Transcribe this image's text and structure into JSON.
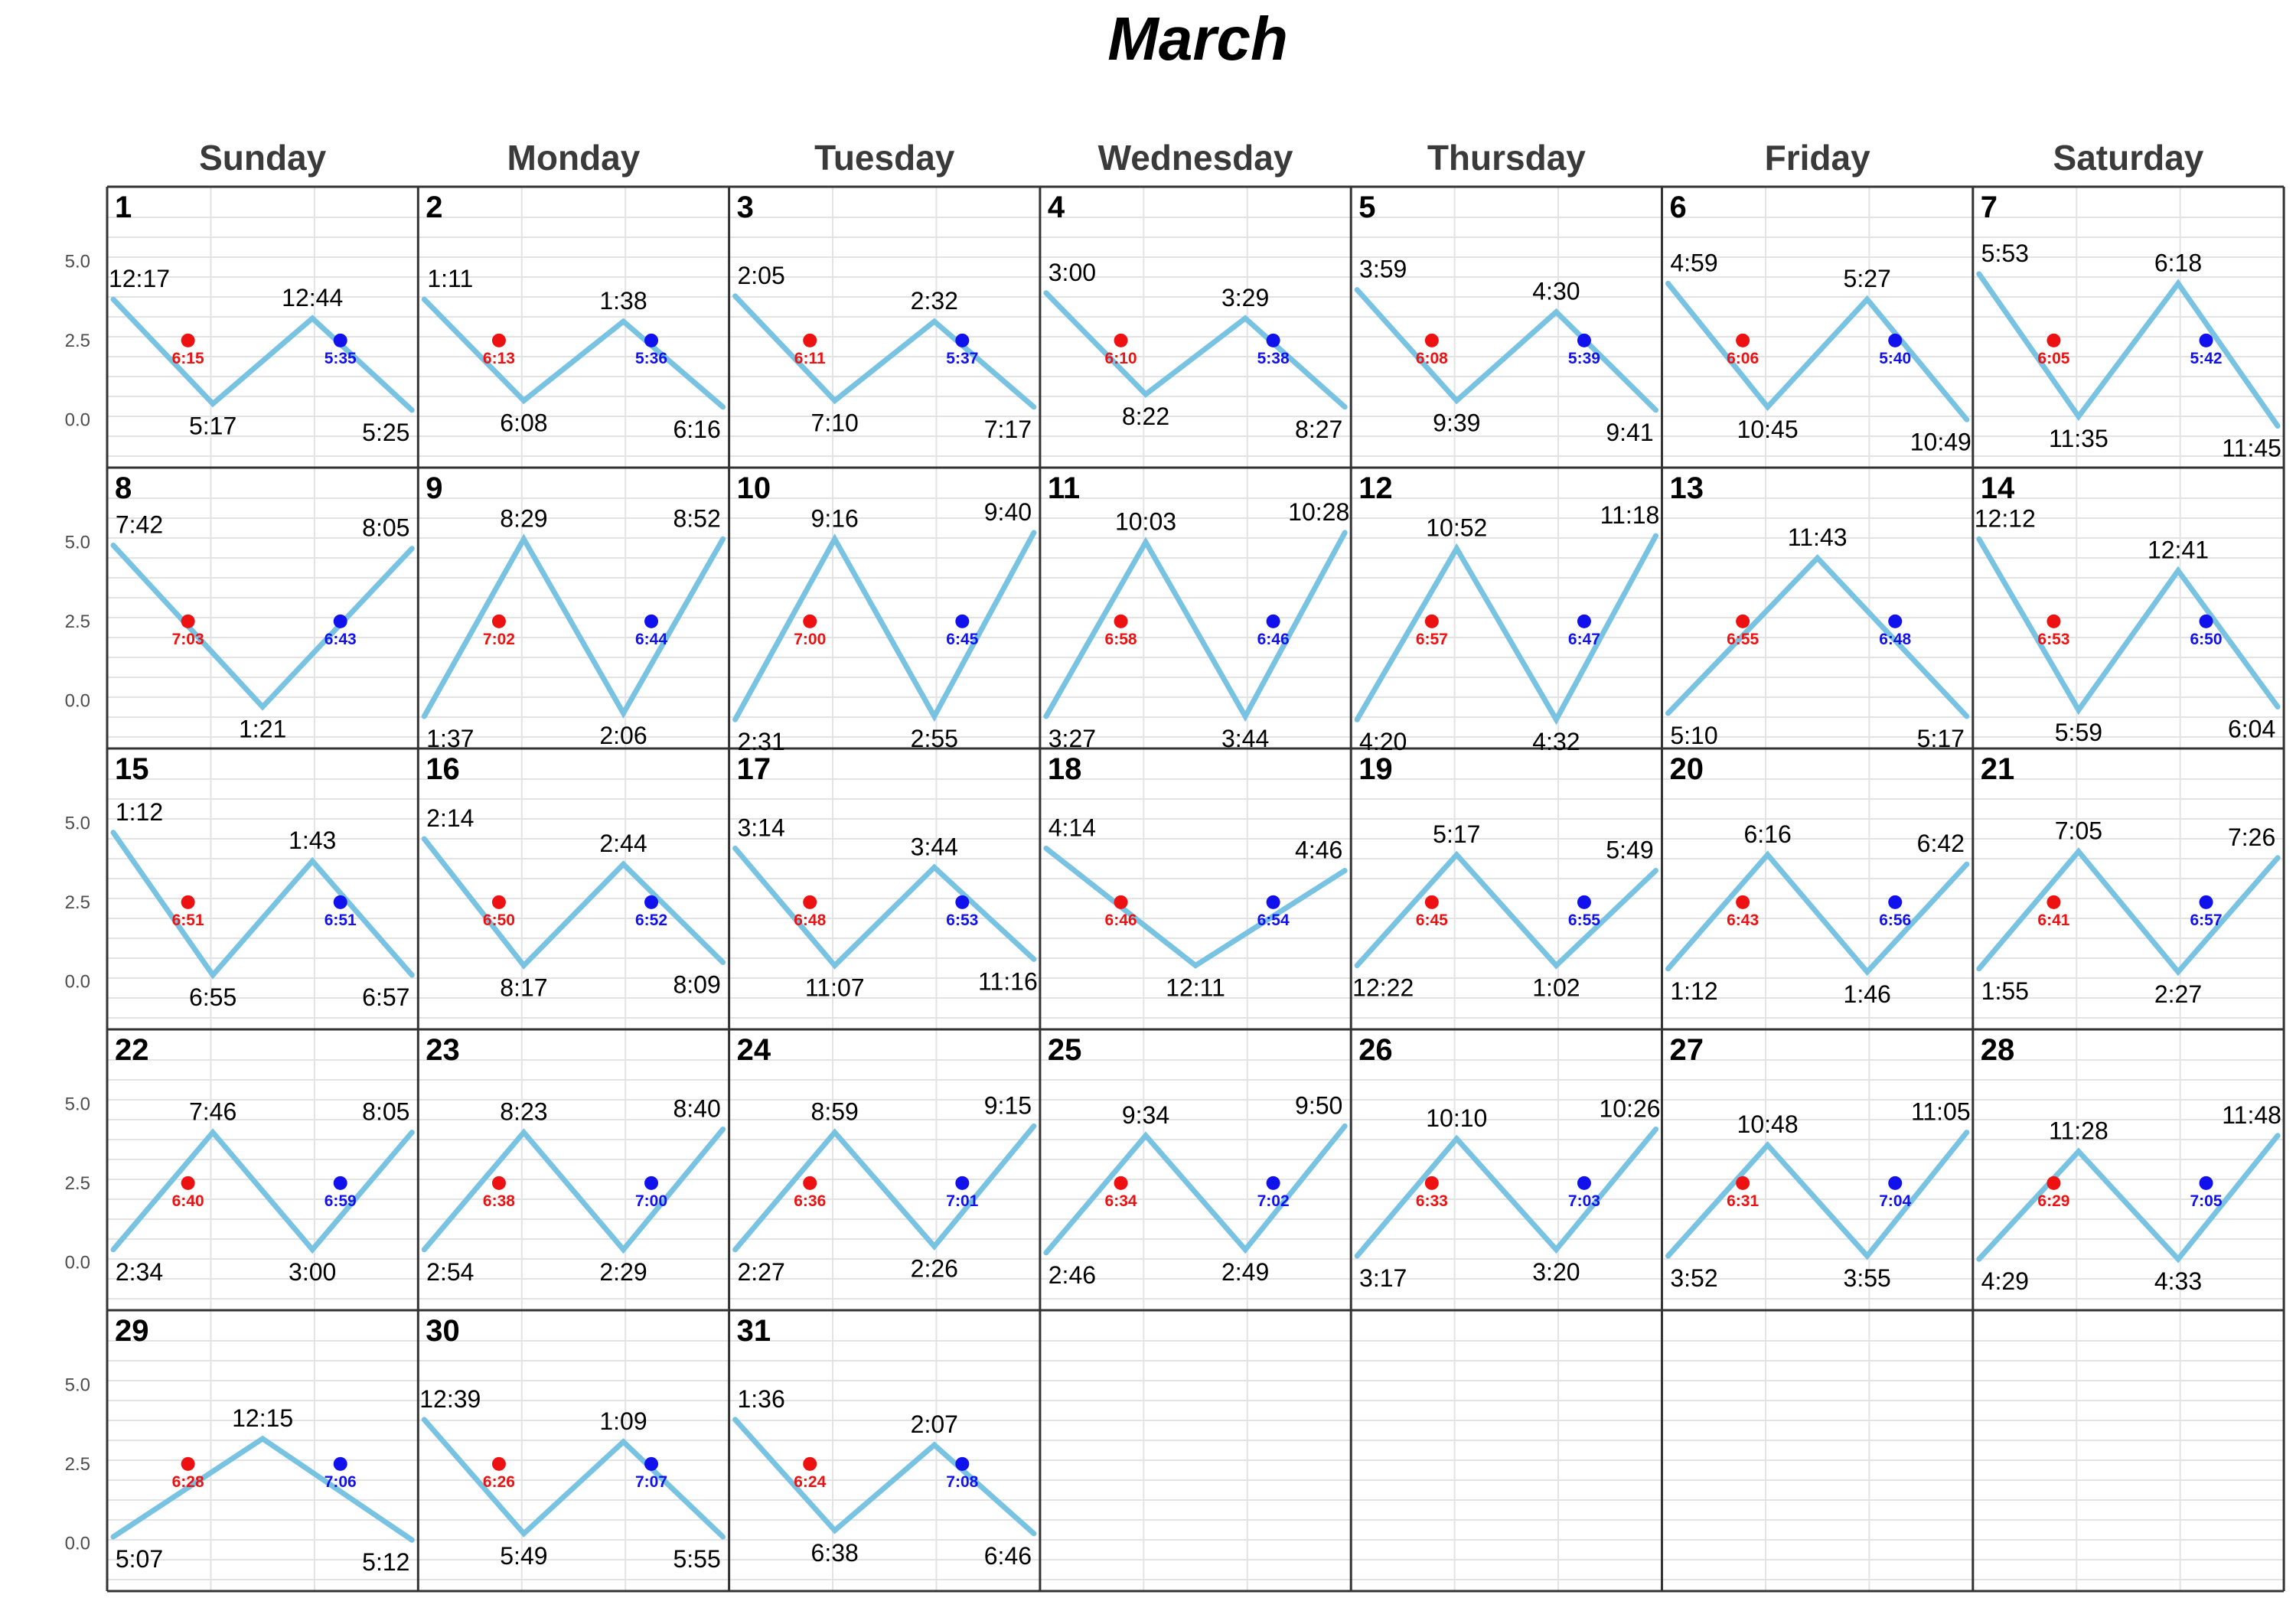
{
  "chart_data": {
    "type": "line",
    "title": "March",
    "weekdays": [
      "Sunday",
      "Monday",
      "Tuesday",
      "Wednesday",
      "Thursday",
      "Friday",
      "Saturday"
    ],
    "y_ticks": [
      "5.0",
      "2.5",
      "0.0"
    ],
    "ylim": [
      -1.2,
      6.0
    ],
    "first_weekday_index": 0,
    "grid": true,
    "colors": {
      "tide_line": "#78c2e2",
      "sunrise": "#ee1111",
      "sunset": "#1111ee",
      "cell_border": "#333333",
      "grid": "#e3e3e3"
    },
    "days": [
      {
        "day": "1",
        "sunrise": "6:15",
        "sunset": "5:35",
        "tides": [
          {
            "t": "12:17",
            "h": 3.8
          },
          {
            "t": "5:17",
            "h": 0.5
          },
          {
            "t": "12:44",
            "h": 3.2
          },
          {
            "t": "5:25",
            "h": 0.3
          }
        ]
      },
      {
        "day": "2",
        "sunrise": "6:13",
        "sunset": "5:36",
        "tides": [
          {
            "t": "1:11",
            "h": 3.8
          },
          {
            "t": "6:08",
            "h": 0.6
          },
          {
            "t": "1:38",
            "h": 3.1
          },
          {
            "t": "6:16",
            "h": 0.4
          }
        ]
      },
      {
        "day": "3",
        "sunrise": "6:11",
        "sunset": "5:37",
        "tides": [
          {
            "t": "2:05",
            "h": 3.9
          },
          {
            "t": "7:10",
            "h": 0.6
          },
          {
            "t": "2:32",
            "h": 3.1
          },
          {
            "t": "7:17",
            "h": 0.4
          }
        ]
      },
      {
        "day": "4",
        "sunrise": "6:10",
        "sunset": "5:38",
        "tides": [
          {
            "t": "3:00",
            "h": 4.0
          },
          {
            "t": "8:22",
            "h": 0.8
          },
          {
            "t": "3:29",
            "h": 3.2
          },
          {
            "t": "8:27",
            "h": 0.4
          }
        ]
      },
      {
        "day": "5",
        "sunrise": "6:08",
        "sunset": "5:39",
        "tides": [
          {
            "t": "3:59",
            "h": 4.1
          },
          {
            "t": "9:39",
            "h": 0.6
          },
          {
            "t": "4:30",
            "h": 3.4
          },
          {
            "t": "9:41",
            "h": 0.3
          }
        ]
      },
      {
        "day": "6",
        "sunrise": "6:06",
        "sunset": "5:40",
        "tides": [
          {
            "t": "4:59",
            "h": 4.3
          },
          {
            "t": "10:45",
            "h": 0.4
          },
          {
            "t": "5:27",
            "h": 3.8
          },
          {
            "t": "10:49",
            "h": 0.0
          }
        ]
      },
      {
        "day": "7",
        "sunrise": "6:05",
        "sunset": "5:42",
        "tides": [
          {
            "t": "5:53",
            "h": 4.6
          },
          {
            "t": "11:35",
            "h": 0.1
          },
          {
            "t": "6:18",
            "h": 4.3
          },
          {
            "t": "11:45",
            "h": -0.2
          }
        ]
      },
      {
        "day": "8",
        "sunrise": "7:03",
        "sunset": "6:43",
        "tides": [
          {
            "t": "7:42",
            "h": 4.9
          },
          {
            "t": "1:21",
            "h": -0.2
          },
          {
            "t": "8:05",
            "h": 4.8
          }
        ]
      },
      {
        "day": "9",
        "sunrise": "7:02",
        "sunset": "6:44",
        "tides": [
          {
            "t": "1:37",
            "h": -0.5
          },
          {
            "t": "8:29",
            "h": 5.1
          },
          {
            "t": "2:06",
            "h": -0.4
          },
          {
            "t": "8:52",
            "h": 5.1
          }
        ]
      },
      {
        "day": "10",
        "sunrise": "7:00",
        "sunset": "6:45",
        "tides": [
          {
            "t": "2:31",
            "h": -0.6
          },
          {
            "t": "9:16",
            "h": 5.1
          },
          {
            "t": "2:55",
            "h": -0.5
          },
          {
            "t": "9:40",
            "h": 5.3
          }
        ]
      },
      {
        "day": "11",
        "sunrise": "6:58",
        "sunset": "6:46",
        "tides": [
          {
            "t": "3:27",
            "h": -0.5
          },
          {
            "t": "10:03",
            "h": 5.0
          },
          {
            "t": "3:44",
            "h": -0.5
          },
          {
            "t": "10:28",
            "h": 5.3
          }
        ]
      },
      {
        "day": "12",
        "sunrise": "6:57",
        "sunset": "6:47",
        "tides": [
          {
            "t": "4:20",
            "h": -0.6
          },
          {
            "t": "10:52",
            "h": 4.8
          },
          {
            "t": "4:32",
            "h": -0.6
          },
          {
            "t": "11:18",
            "h": 5.2
          }
        ]
      },
      {
        "day": "13",
        "sunrise": "6:55",
        "sunset": "6:48",
        "tides": [
          {
            "t": "5:10",
            "h": -0.4
          },
          {
            "t": "11:43",
            "h": 4.5
          },
          {
            "t": "5:17",
            "h": -0.5
          }
        ]
      },
      {
        "day": "14",
        "sunrise": "6:53",
        "sunset": "6:50",
        "tides": [
          {
            "t": "12:12",
            "h": 5.1
          },
          {
            "t": "5:59",
            "h": -0.3
          },
          {
            "t": "12:41",
            "h": 4.1
          },
          {
            "t": "6:04",
            "h": -0.2
          }
        ]
      },
      {
        "day": "15",
        "sunrise": "6:51",
        "sunset": "6:51",
        "tides": [
          {
            "t": "1:12",
            "h": 4.7
          },
          {
            "t": "6:55",
            "h": 0.2
          },
          {
            "t": "1:43",
            "h": 3.8
          },
          {
            "t": "6:57",
            "h": 0.2
          }
        ]
      },
      {
        "day": "16",
        "sunrise": "6:50",
        "sunset": "6:52",
        "tides": [
          {
            "t": "2:14",
            "h": 4.5
          },
          {
            "t": "8:17",
            "h": 0.5
          },
          {
            "t": "2:44",
            "h": 3.7
          },
          {
            "t": "8:09",
            "h": 0.6
          }
        ]
      },
      {
        "day": "17",
        "sunrise": "6:48",
        "sunset": "6:53",
        "tides": [
          {
            "t": "3:14",
            "h": 4.2
          },
          {
            "t": "11:07",
            "h": 0.5
          },
          {
            "t": "3:44",
            "h": 3.6
          },
          {
            "t": "11:16",
            "h": 0.7
          }
        ]
      },
      {
        "day": "18",
        "sunrise": "6:46",
        "sunset": "6:54",
        "tides": [
          {
            "t": "4:14",
            "h": 4.2
          },
          {
            "t": "12:11",
            "h": 0.5
          },
          {
            "t": "4:46",
            "h": 3.5
          }
        ]
      },
      {
        "day": "19",
        "sunrise": "6:45",
        "sunset": "6:55",
        "tides": [
          {
            "t": "12:22",
            "h": 0.5
          },
          {
            "t": "5:17",
            "h": 4.0
          },
          {
            "t": "1:02",
            "h": 0.5
          },
          {
            "t": "5:49",
            "h": 3.5
          }
        ]
      },
      {
        "day": "20",
        "sunrise": "6:43",
        "sunset": "6:56",
        "tides": [
          {
            "t": "1:12",
            "h": 0.4
          },
          {
            "t": "6:16",
            "h": 4.0
          },
          {
            "t": "1:46",
            "h": 0.3
          },
          {
            "t": "6:42",
            "h": 3.7
          }
        ]
      },
      {
        "day": "21",
        "sunrise": "6:41",
        "sunset": "6:57",
        "tides": [
          {
            "t": "1:55",
            "h": 0.4
          },
          {
            "t": "7:05",
            "h": 4.1
          },
          {
            "t": "2:27",
            "h": 0.3
          },
          {
            "t": "7:26",
            "h": 3.9
          }
        ]
      },
      {
        "day": "22",
        "sunrise": "6:40",
        "sunset": "6:59",
        "tides": [
          {
            "t": "2:34",
            "h": 0.4
          },
          {
            "t": "7:46",
            "h": 4.1
          },
          {
            "t": "3:00",
            "h": 0.4
          },
          {
            "t": "8:05",
            "h": 4.1
          }
        ]
      },
      {
        "day": "23",
        "sunrise": "6:38",
        "sunset": "7:00",
        "tides": [
          {
            "t": "2:54",
            "h": 0.4
          },
          {
            "t": "8:23",
            "h": 4.1
          },
          {
            "t": "2:29",
            "h": 0.4
          },
          {
            "t": "8:40",
            "h": 4.2
          }
        ]
      },
      {
        "day": "24",
        "sunrise": "6:36",
        "sunset": "7:01",
        "tides": [
          {
            "t": "2:27",
            "h": 0.4
          },
          {
            "t": "8:59",
            "h": 4.1
          },
          {
            "t": "2:26",
            "h": 0.5
          },
          {
            "t": "9:15",
            "h": 4.3
          }
        ]
      },
      {
        "day": "25",
        "sunrise": "6:34",
        "sunset": "7:02",
        "tides": [
          {
            "t": "2:46",
            "h": 0.3
          },
          {
            "t": "9:34",
            "h": 4.0
          },
          {
            "t": "2:49",
            "h": 0.4
          },
          {
            "t": "9:50",
            "h": 4.3
          }
        ]
      },
      {
        "day": "26",
        "sunrise": "6:33",
        "sunset": "7:03",
        "tides": [
          {
            "t": "3:17",
            "h": 0.2
          },
          {
            "t": "10:10",
            "h": 3.9
          },
          {
            "t": "3:20",
            "h": 0.4
          },
          {
            "t": "10:26",
            "h": 4.2
          }
        ]
      },
      {
        "day": "27",
        "sunrise": "6:31",
        "sunset": "7:04",
        "tides": [
          {
            "t": "3:52",
            "h": 0.2
          },
          {
            "t": "10:48",
            "h": 3.7
          },
          {
            "t": "3:55",
            "h": 0.2
          },
          {
            "t": "11:05",
            "h": 4.1
          }
        ]
      },
      {
        "day": "28",
        "sunrise": "6:29",
        "sunset": "7:05",
        "tides": [
          {
            "t": "4:29",
            "h": 0.1
          },
          {
            "t": "11:28",
            "h": 3.5
          },
          {
            "t": "4:33",
            "h": 0.1
          },
          {
            "t": "11:48",
            "h": 4.0
          }
        ]
      },
      {
        "day": "29",
        "sunrise": "6:28",
        "sunset": "7:06",
        "tides": [
          {
            "t": "5:07",
            "h": 0.2
          },
          {
            "t": "12:15",
            "h": 3.3
          },
          {
            "t": "5:12",
            "h": 0.1
          }
        ]
      },
      {
        "day": "30",
        "sunrise": "6:26",
        "sunset": "7:07",
        "tides": [
          {
            "t": "12:39",
            "h": 3.9
          },
          {
            "t": "5:49",
            "h": 0.3
          },
          {
            "t": "1:09",
            "h": 3.2
          },
          {
            "t": "5:55",
            "h": 0.2
          }
        ]
      },
      {
        "day": "31",
        "sunrise": "6:24",
        "sunset": "7:08",
        "tides": [
          {
            "t": "1:36",
            "h": 3.9
          },
          {
            "t": "6:38",
            "h": 0.4
          },
          {
            "t": "2:07",
            "h": 3.1
          },
          {
            "t": "6:46",
            "h": 0.3
          }
        ]
      }
    ]
  }
}
